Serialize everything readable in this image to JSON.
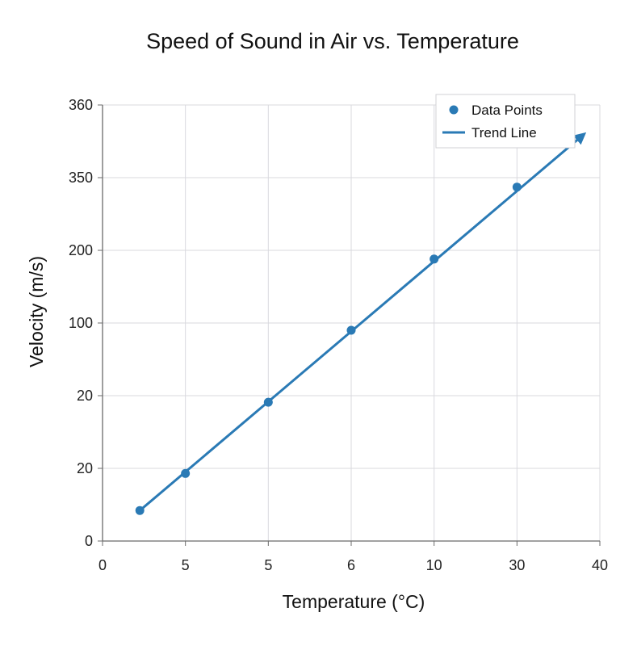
{
  "chart_data": {
    "type": "scatter",
    "title": "Speed of Sound in Air vs. Temperature",
    "xlabel": "Temperature (°C)",
    "ylabel": "Velocity (m/s)",
    "x_ticks": [
      "0",
      "5",
      "5",
      "6",
      "10",
      "30",
      "40"
    ],
    "y_ticks": [
      "0",
      "20",
      "20",
      "100",
      "200",
      "350",
      "360"
    ],
    "x_tick_positions": [
      0,
      1,
      2,
      3,
      4,
      5,
      6
    ],
    "y_tick_positions": [
      0,
      1,
      2,
      3,
      4,
      5,
      6
    ],
    "xlim": [
      0,
      6
    ],
    "ylim": [
      0,
      6
    ],
    "grid": true,
    "legend_position": "top-right",
    "series": [
      {
        "name": "Data Points",
        "kind": "scatter",
        "color": "#2a7ab5",
        "points": [
          {
            "x": 0.45,
            "y": 0.42
          },
          {
            "x": 1.0,
            "y": 0.93
          },
          {
            "x": 2.0,
            "y": 1.91
          },
          {
            "x": 3.0,
            "y": 2.9
          },
          {
            "x": 4.0,
            "y": 3.88
          },
          {
            "x": 5.0,
            "y": 4.87
          }
        ]
      },
      {
        "name": "Trend Line",
        "kind": "line",
        "color": "#2a7ab5",
        "arrow_end": true,
        "points": [
          {
            "x": 0.45,
            "y": 0.42
          },
          {
            "x": 5.78,
            "y": 5.57
          }
        ]
      }
    ]
  }
}
